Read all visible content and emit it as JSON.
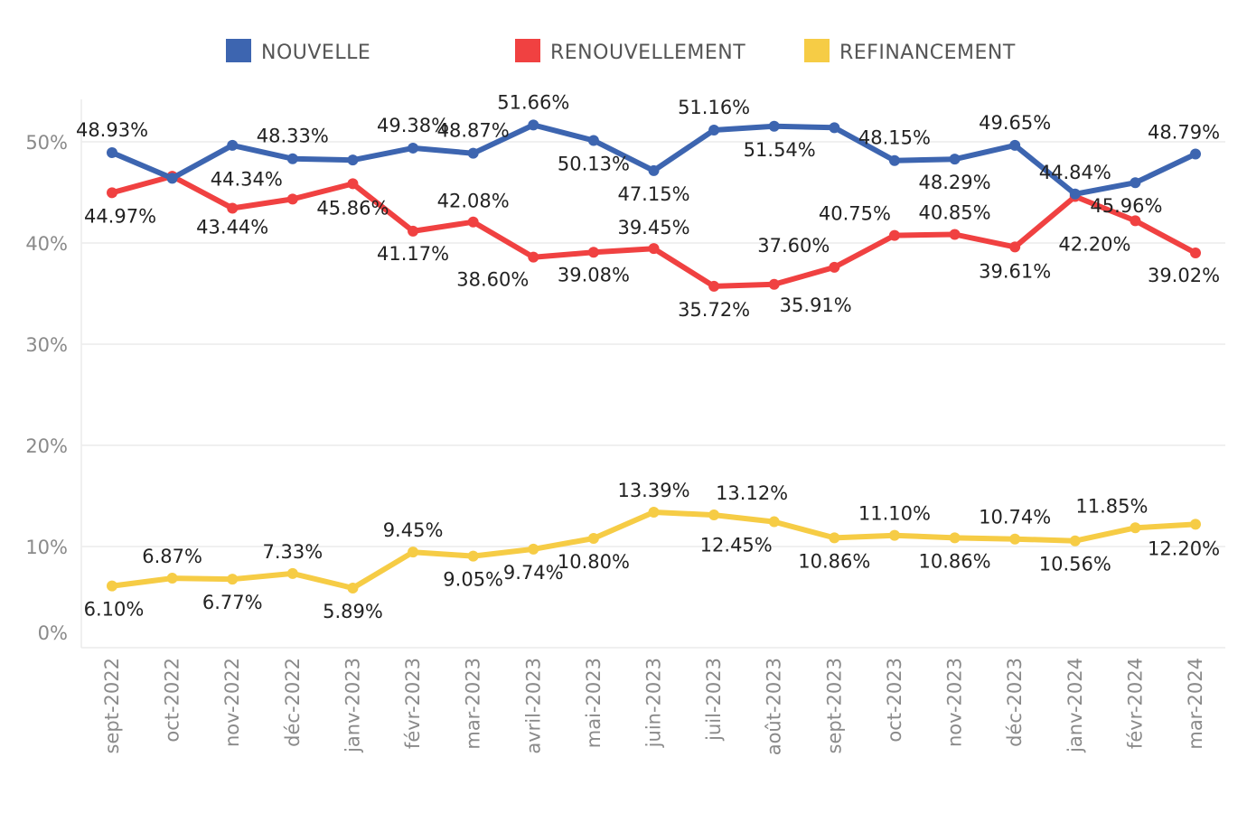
{
  "chart_data": {
    "type": "line",
    "yunit": "%",
    "ylim": [
      0,
      55
    ],
    "yticks": [
      0,
      10,
      20,
      30,
      40,
      50
    ],
    "ytick_labels": [
      "0%",
      "10%",
      "20%",
      "30%",
      "40%",
      "50%"
    ],
    "grid": true,
    "legend_position": "top",
    "categories": [
      "sept-2022",
      "oct-2022",
      "nov-2022",
      "déc-2022",
      "janv-2023",
      "févr-2023",
      "mar-2023",
      "avril-2023",
      "mai-2023",
      "juin-2023",
      "juil-2023",
      "août-2023",
      "sept-2023",
      "oct-2023",
      "nov-2023",
      "déc-2023",
      "janv-2024",
      "févr-2024",
      "mar-2024"
    ],
    "series": [
      {
        "name": "NOUVELLE",
        "color": "#3d65b0",
        "values": [
          48.93,
          46.4,
          49.65,
          48.33,
          48.2,
          49.38,
          48.87,
          51.66,
          50.13,
          47.15,
          51.16,
          51.54,
          51.4,
          48.15,
          48.29,
          49.65,
          44.84,
          45.96,
          48.79
        ],
        "labels": [
          "48.93%",
          null,
          null,
          "48.33%",
          null,
          "49.38%",
          "48.87%",
          "51.66%",
          "50.13%",
          "47.15%",
          "51.16%",
          "51.54%",
          null,
          "48.15%",
          "48.29%",
          "49.65%",
          "44.84%",
          "45.96%",
          "48.79%"
        ]
      },
      {
        "name": "RENOUVELLEMENT",
        "color": "#f04141",
        "values": [
          44.97,
          46.6,
          43.44,
          44.34,
          45.86,
          41.17,
          42.08,
          38.6,
          39.08,
          39.45,
          35.72,
          35.91,
          37.6,
          40.75,
          40.85,
          39.61,
          44.6,
          42.2,
          39.02
        ],
        "labels": [
          "44.97%",
          null,
          "43.44%",
          "44.34%",
          "45.86%",
          "41.17%",
          "42.08%",
          "38.60%",
          "39.08%",
          "39.45%",
          "35.72%",
          "35.91%",
          "37.60%",
          "40.75%",
          "40.85%",
          "39.61%",
          null,
          "42.20%",
          "39.02%"
        ]
      },
      {
        "name": "REFINANCEMENT",
        "color": "#f6cc45",
        "values": [
          6.1,
          6.87,
          6.77,
          7.33,
          5.89,
          9.45,
          9.05,
          9.74,
          10.8,
          13.39,
          13.12,
          12.45,
          10.86,
          11.1,
          10.86,
          10.74,
          10.56,
          11.85,
          12.2
        ],
        "labels": [
          "6.10%",
          "6.87%",
          "6.77%",
          "7.33%",
          "5.89%",
          "9.45%",
          "9.05%",
          "9.74%",
          "10.80%",
          "13.39%",
          "13.12%",
          "12.45%",
          "10.86%",
          "11.10%",
          "10.86%",
          "10.74%",
          "10.56%",
          "11.85%",
          "12.20%"
        ]
      }
    ]
  }
}
